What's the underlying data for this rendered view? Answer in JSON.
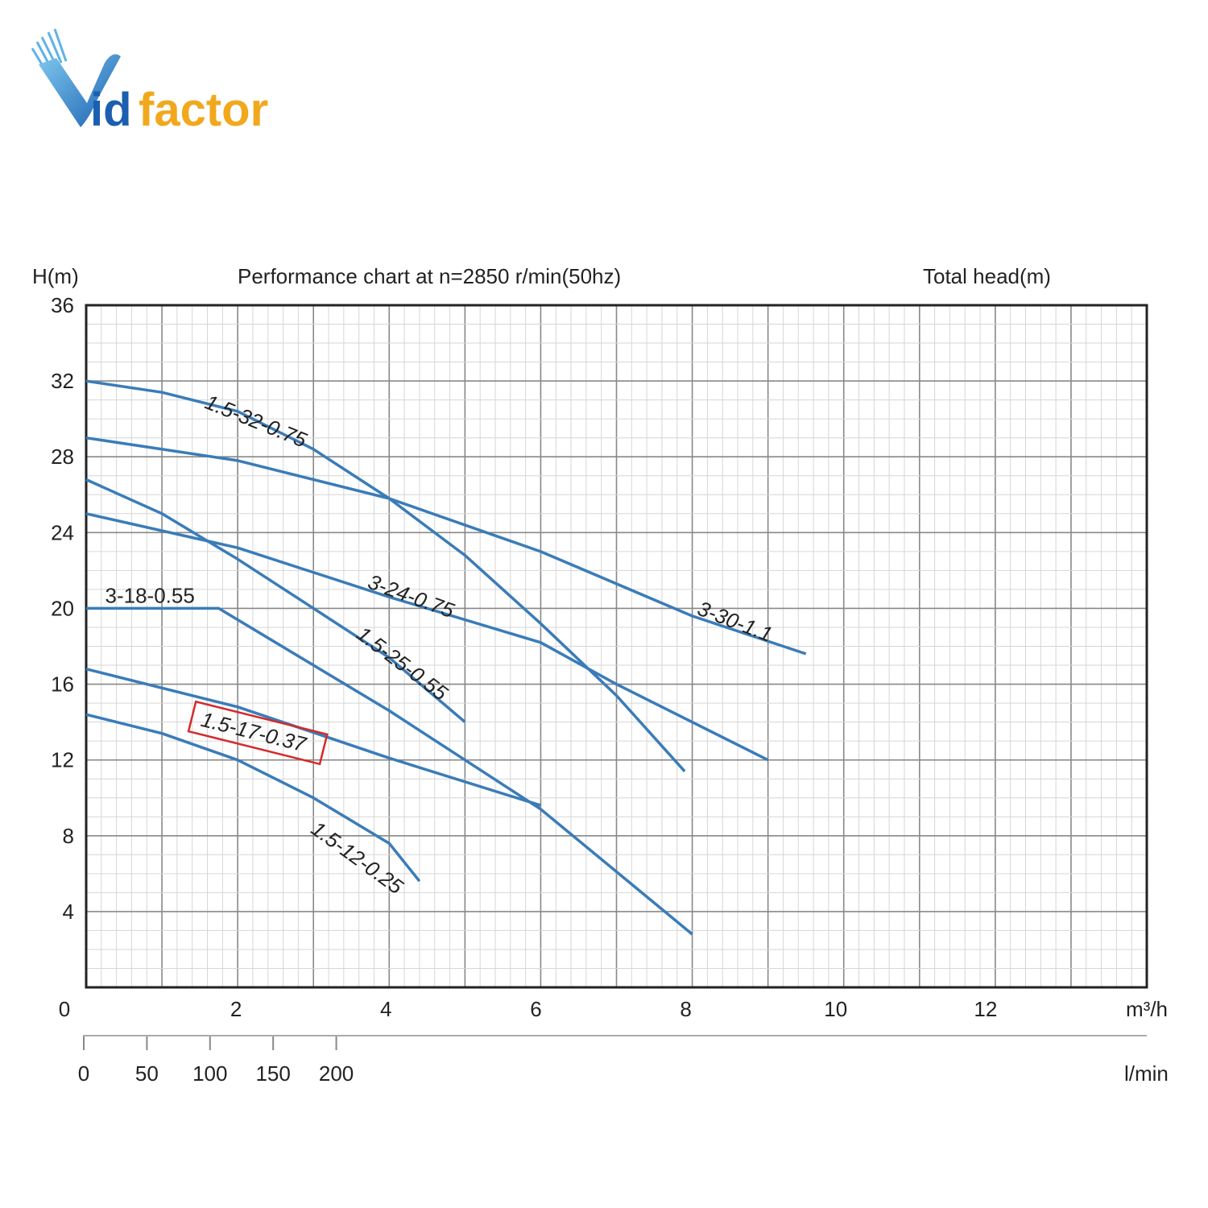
{
  "logo": {
    "text_v": "V",
    "text_id": "id",
    "text_factor": "factor"
  },
  "chart_data": {
    "type": "line",
    "title": "Performance chart at n=2850 r/min(50hz)",
    "ylabel": "H(m)",
    "right_label": "Total head(m)",
    "xlabel_primary": "m³/h",
    "xlabel_secondary": "l/min",
    "xlim": [
      0,
      14
    ],
    "ylim": [
      0,
      36
    ],
    "yticks": [
      "36",
      "32",
      "28",
      "24",
      "20",
      "16",
      "12",
      "8",
      "4"
    ],
    "y_tick_values": [
      36,
      32,
      28,
      24,
      20,
      16,
      12,
      8,
      4
    ],
    "xticks": [
      "0",
      "2",
      "4",
      "6",
      "8",
      "10",
      "12"
    ],
    "x_tick_values": [
      0,
      2,
      4,
      6,
      8,
      10,
      12
    ],
    "secondary_ticks": [
      "0",
      "50",
      "100",
      "150",
      "200"
    ],
    "secondary_tick_values": [
      0,
      50,
      100,
      150,
      200
    ],
    "grid": true,
    "line_color": "#3a7cb8",
    "highlight_color": "#d42a2a",
    "series": [
      {
        "name": "1.5-32-0.75",
        "points": [
          [
            0,
            32
          ],
          [
            1,
            31.4
          ],
          [
            2,
            30.4
          ],
          [
            3,
            28.4
          ],
          [
            4,
            25.8
          ],
          [
            5,
            22.8
          ],
          [
            6,
            19.2
          ],
          [
            7,
            15.4
          ],
          [
            7.9,
            11.4
          ]
        ]
      },
      {
        "name": "3-30-1.1",
        "points": [
          [
            0,
            29
          ],
          [
            2,
            27.8
          ],
          [
            4,
            25.8
          ],
          [
            6,
            23
          ],
          [
            8,
            19.6
          ],
          [
            9.5,
            17.6
          ]
        ]
      },
      {
        "name": "1.5-25-0.55",
        "points": [
          [
            0,
            26.8
          ],
          [
            1,
            25
          ],
          [
            2,
            22.6
          ],
          [
            3,
            20
          ],
          [
            4,
            17.4
          ],
          [
            5,
            14
          ]
        ]
      },
      {
        "name": "3-24-0.75",
        "points": [
          [
            0,
            25
          ],
          [
            2,
            23.2
          ],
          [
            4,
            20.6
          ],
          [
            6,
            18.2
          ],
          [
            7,
            16
          ],
          [
            9,
            12
          ]
        ]
      },
      {
        "name": "3-18-0.55",
        "points": [
          [
            0,
            20
          ],
          [
            1.75,
            20
          ],
          [
            3,
            17
          ],
          [
            4,
            14.6
          ],
          [
            5,
            12
          ],
          [
            6,
            9.4
          ],
          [
            8,
            2.8
          ]
        ]
      },
      {
        "name": "1.5-17-0.37",
        "points": [
          [
            0,
            16.8
          ],
          [
            2,
            14.8
          ],
          [
            4,
            12.1
          ],
          [
            6,
            9.6
          ]
        ],
        "highlight": true
      },
      {
        "name": "1.5-12-0.25",
        "points": [
          [
            0,
            14.4
          ],
          [
            1,
            13.4
          ],
          [
            2,
            12
          ],
          [
            3,
            10
          ],
          [
            4,
            7.6
          ],
          [
            4.4,
            5.6
          ]
        ]
      }
    ]
  }
}
